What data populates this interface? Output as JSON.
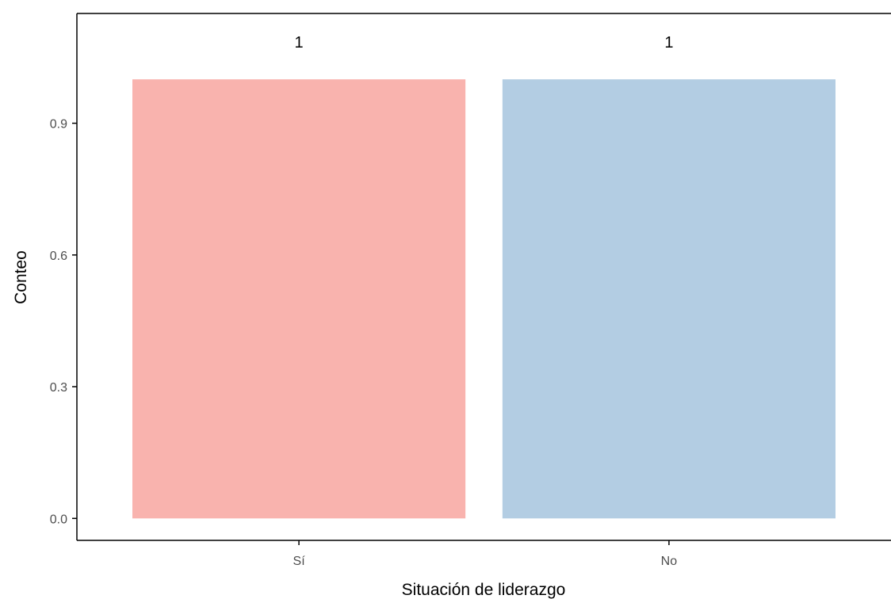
{
  "chart_data": {
    "type": "bar",
    "categories": [
      "Sí",
      "No"
    ],
    "values": [
      1,
      1
    ],
    "data_labels": [
      "1",
      "1"
    ],
    "colors": [
      "#F9B3AE",
      "#B3CDE3"
    ],
    "xlabel": "Situación de liderazgo",
    "ylabel": "Conteo",
    "ylim": [
      -0.05,
      1.15
    ],
    "yticks": [
      0.0,
      0.3,
      0.6,
      0.9
    ],
    "ytick_labels": [
      "0.0",
      "0.3",
      "0.6",
      "0.9"
    ],
    "grid": false,
    "legend": "none"
  }
}
